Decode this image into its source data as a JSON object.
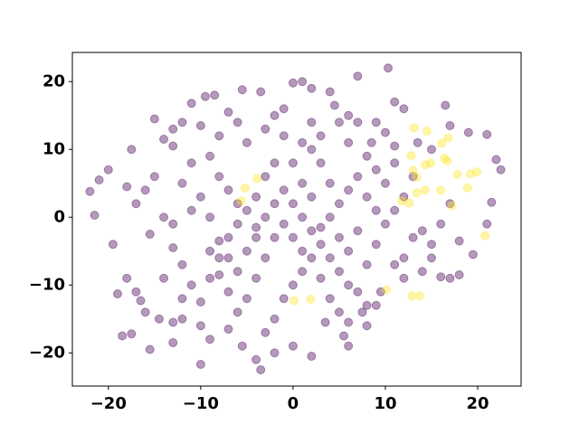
{
  "chart_data": {
    "type": "scatter",
    "xlim": [
      -23.9,
      24.7
    ],
    "ylim": [
      -24.9,
      24.3
    ],
    "xticks": [
      {
        "value": -20,
        "label": "−20"
      },
      {
        "value": -10,
        "label": "−10"
      },
      0,
      10,
      20
    ],
    "yticks": [
      {
        "value": -20,
        "label": "−20"
      },
      {
        "value": -10,
        "label": "−10"
      },
      0,
      10,
      20
    ],
    "grid": false,
    "series": [
      {
        "color": "#440154",
        "x": [
          -15,
          -11,
          -9.5,
          -8.5,
          -7,
          -5.5,
          -3.5,
          -1,
          0,
          1,
          2,
          4,
          7,
          10.3,
          11,
          12,
          4.5,
          -2,
          -6,
          -10,
          -12,
          -13,
          -14,
          -17.5,
          -20,
          -21,
          -22,
          -21.5,
          -19.5,
          -18,
          -19,
          -18.5,
          -17.5,
          -16.5,
          -15.5,
          -14.5,
          -13,
          -12,
          -10,
          -9,
          -7,
          -5.5,
          -4,
          -2,
          -3.5,
          0,
          2,
          3.5,
          5.5,
          6,
          7.5,
          8,
          9.5,
          11,
          12,
          14,
          15,
          17,
          18,
          19.5,
          21,
          21.5,
          22,
          22.5,
          21,
          19,
          17,
          16.5,
          15,
          13.5,
          11,
          10,
          8.5,
          7,
          6,
          5,
          3,
          2,
          1,
          -1,
          -3,
          -5,
          -8,
          -9,
          -11,
          -13,
          -15,
          -16,
          -17,
          -18,
          -15.5,
          -14,
          -13,
          -12,
          -11,
          -10,
          -9,
          -8,
          -7,
          -6,
          -5,
          -4,
          -3,
          -2,
          -1,
          0,
          1,
          2,
          3,
          4,
          5,
          6,
          7,
          8,
          9,
          10,
          11,
          12,
          10,
          9,
          8,
          7,
          6,
          5,
          4,
          3,
          2,
          1,
          0,
          -2,
          -3,
          -4,
          -5,
          -6,
          -7,
          -8,
          -9,
          -10,
          -11,
          -12,
          -13,
          -14,
          -16,
          -17,
          -1,
          0,
          1,
          2,
          3,
          4,
          5,
          -2,
          -3,
          -6,
          -7,
          -8,
          -4,
          -5,
          -3,
          -2,
          -1,
          0,
          1,
          -4,
          -6,
          -7,
          -8,
          -9,
          14,
          15,
          16,
          17,
          18,
          16,
          13,
          12,
          9,
          8,
          7,
          6,
          5,
          4,
          3,
          2,
          6,
          9,
          11,
          13,
          -10,
          -12,
          -13,
          8,
          6,
          9
        ],
        "values": [
          14.5,
          16.8,
          17.8,
          18,
          15.5,
          18.8,
          18.5,
          16,
          19.8,
          20,
          19,
          18.5,
          20.8,
          22,
          17,
          16,
          16.5,
          15,
          14,
          13.5,
          14,
          13,
          11.5,
          10,
          7,
          5.5,
          3.8,
          0.3,
          -4,
          -9,
          -11.3,
          -17.5,
          -17.2,
          -12.3,
          -19.5,
          -15,
          -18.5,
          -15,
          -21.7,
          -18,
          -16.5,
          -19,
          -21,
          -20,
          -22.5,
          -19,
          -20.5,
          -15.5,
          -17.5,
          -19,
          -14,
          -13,
          -11,
          -7,
          -9,
          -8,
          -6,
          -9,
          -8.5,
          -5.5,
          -1,
          2.2,
          8.5,
          7,
          12.2,
          12.5,
          13.5,
          16.5,
          10,
          11,
          10.5,
          12.5,
          11,
          14,
          15,
          14,
          12,
          14,
          11,
          12,
          13,
          11,
          12,
          9,
          8,
          10.5,
          6,
          4,
          2,
          4.5,
          -2.5,
          0,
          -4.5,
          -7,
          -10,
          -12.5,
          -9,
          -6,
          -3,
          -1,
          1,
          3,
          6,
          8,
          4,
          2,
          0,
          -2,
          -4,
          -6,
          -8,
          -10,
          -11,
          -7,
          -4,
          -1,
          1,
          3,
          5,
          7,
          9,
          6,
          4,
          2,
          0,
          -1.5,
          3,
          5,
          8,
          -3,
          -6,
          -9,
          -12,
          -14,
          -11,
          -3.5,
          0,
          3,
          1,
          5,
          -1,
          -9,
          -14,
          -11,
          -12,
          -10,
          -8,
          -6,
          -9,
          -12,
          -14,
          -15,
          -17,
          -8,
          -6,
          -8.5,
          -3,
          -5,
          0,
          2,
          -1,
          -3,
          -5,
          -1.5,
          2,
          4,
          6,
          -5,
          -2,
          -4,
          -1,
          2,
          -3.5,
          -8.8,
          -3,
          -6,
          1,
          3,
          -2,
          -5,
          -3,
          5,
          8,
          10,
          11,
          14,
          8,
          6,
          -16,
          -12,
          -15.5,
          -16,
          -15.5,
          -13
        ]
      },
      {
        "color": "#fde725",
        "x": [
          -5.2,
          -5.6,
          -3.9,
          0.1,
          1.9,
          10.1,
          12.9,
          13.7,
          13.1,
          14.5,
          16.1,
          16.8,
          16.4,
          16.7,
          14.9,
          17.8,
          19.2,
          19.9,
          18.9,
          12.8,
          13.0,
          13.4,
          14.3,
          12.6,
          11.8,
          16.0,
          17.2,
          20.8,
          13.4,
          14.3
        ],
        "values": [
          4.3,
          2.4,
          5.7,
          -12.3,
          -12.1,
          -10.7,
          -11.6,
          -11.6,
          13.2,
          12.7,
          10.9,
          11.7,
          8.7,
          8.3,
          8.0,
          6.3,
          6.4,
          6.7,
          4.3,
          9.1,
          6.9,
          5.9,
          4.0,
          2.1,
          2.4,
          4.0,
          1.7,
          -2.7,
          3.6,
          7.7
        ]
      }
    ]
  }
}
